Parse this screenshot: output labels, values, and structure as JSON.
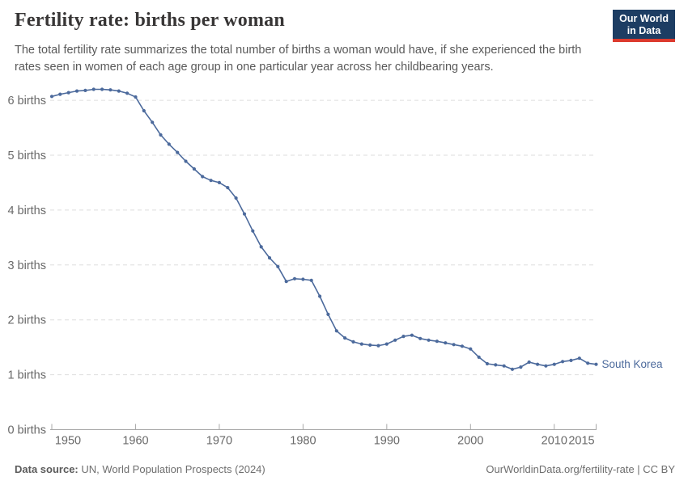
{
  "header": {
    "title": "Fertility rate: births per woman",
    "subtitle": "The total fertility rate summarizes the total number of births a woman would have, if she experienced the birth rates seen in women of each age group in one particular year across her childbearing years.",
    "logo": {
      "line1": "Our World",
      "line2": "in Data",
      "bg_color": "#1d3d63",
      "accent_color": "#dc3a2e"
    }
  },
  "footer": {
    "source_label": "Data source:",
    "source_text": " UN, World Population Prospects (2024)",
    "credit": "OurWorldinData.org/fertility-rate | CC BY"
  },
  "chart_data": {
    "type": "line",
    "title": "Fertility rate: births per woman",
    "entity_label": "South Korea",
    "line_color": "#4C6A9C",
    "grid": "horizontal-dashed",
    "grid_color": "#dddddd",
    "axis_color": "#a8a8a8",
    "tick_text_color": "#696969",
    "legend_position": "end-of-line-label",
    "xlabel": "",
    "ylabel": "",
    "xlim": [
      1950,
      2015
    ],
    "ylim": [
      0,
      6.5
    ],
    "x_ticks": [
      1950,
      1960,
      1970,
      1980,
      1990,
      2000,
      2010,
      2015
    ],
    "y_ticks": [
      {
        "value": 0,
        "label": "0 births"
      },
      {
        "value": 1,
        "label": "1 births"
      },
      {
        "value": 2,
        "label": "2 births"
      },
      {
        "value": 3,
        "label": "3 births"
      },
      {
        "value": 4,
        "label": "4 births"
      },
      {
        "value": 5,
        "label": "5 births"
      },
      {
        "value": 6,
        "label": "6 births"
      }
    ],
    "x": [
      1950,
      1951,
      1952,
      1953,
      1954,
      1955,
      1956,
      1957,
      1958,
      1959,
      1960,
      1961,
      1962,
      1963,
      1964,
      1965,
      1966,
      1967,
      1968,
      1969,
      1970,
      1971,
      1972,
      1973,
      1974,
      1975,
      1976,
      1977,
      1978,
      1979,
      1980,
      1981,
      1982,
      1983,
      1984,
      1985,
      1986,
      1987,
      1988,
      1989,
      1990,
      1991,
      1992,
      1993,
      1994,
      1995,
      1996,
      1997,
      1998,
      1999,
      2000,
      2001,
      2002,
      2003,
      2004,
      2005,
      2006,
      2007,
      2008,
      2009,
      2010,
      2011,
      2012,
      2013,
      2014,
      2015
    ],
    "values": [
      6.07,
      6.11,
      6.14,
      6.17,
      6.18,
      6.2,
      6.2,
      6.19,
      6.17,
      6.13,
      6.06,
      5.81,
      5.6,
      5.37,
      5.2,
      5.05,
      4.89,
      4.75,
      4.61,
      4.54,
      4.5,
      4.41,
      4.22,
      3.93,
      3.62,
      3.33,
      3.13,
      2.97,
      2.7,
      2.75,
      2.74,
      2.72,
      2.43,
      2.1,
      1.8,
      1.67,
      1.6,
      1.56,
      1.54,
      1.53,
      1.56,
      1.63,
      1.7,
      1.72,
      1.66,
      1.63,
      1.61,
      1.58,
      1.55,
      1.52,
      1.47,
      1.32,
      1.2,
      1.18,
      1.16,
      1.1,
      1.14,
      1.23,
      1.19,
      1.16,
      1.19,
      1.24,
      1.26,
      1.3,
      1.21,
      1.19
    ]
  }
}
